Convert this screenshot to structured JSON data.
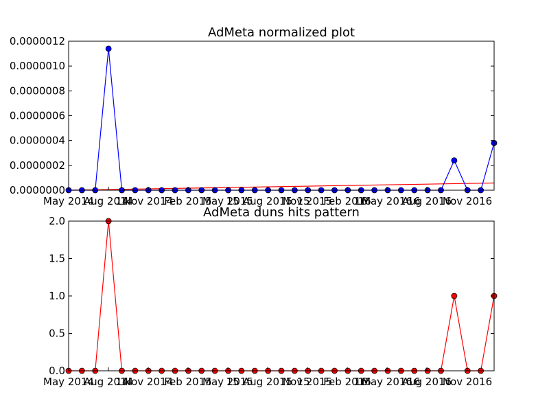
{
  "chart_data": [
    {
      "type": "line",
      "title": "AdMeta normalized plot",
      "xlabel": "",
      "ylabel": "",
      "ylim": [
        0,
        1.2e-06
      ],
      "y_tick_labels": [
        "0.0000000",
        "0.0000002",
        "0.0000004",
        "0.0000006",
        "0.0000008",
        "0.0000010",
        "0.0000012"
      ],
      "x_tick_labels": [
        "May 2014",
        "Aug 2014",
        "Nov 2014",
        "Feb 2015",
        "May 2015",
        "Aug 2015",
        "Nov 2015",
        "Feb 2016",
        "May 2016",
        "Aug 2016",
        "Nov 2016"
      ],
      "x_tick_labels_overlap": [
        "14",
        "15",
        "15",
        "16",
        "16"
      ],
      "x": [
        "2014-05",
        "2014-06",
        "2014-07",
        "2014-08",
        "2014-09",
        "2014-10",
        "2014-11",
        "2014-12",
        "2015-01",
        "2015-02",
        "2015-03",
        "2015-04",
        "2015-05",
        "2015-06",
        "2015-07",
        "2015-08",
        "2015-09",
        "2015-10",
        "2015-11",
        "2015-12",
        "2016-01",
        "2016-02",
        "2016-03",
        "2016-04",
        "2016-05",
        "2016-06",
        "2016-07",
        "2016-08",
        "2016-09",
        "2016-10",
        "2016-11",
        "2016-12",
        "2017-01"
      ],
      "series": [
        {
          "color": "#0000ff",
          "marker_color": "#0000ff",
          "values": [
            0,
            0,
            0,
            1.14e-06,
            0,
            0,
            0,
            0,
            0,
            0,
            0,
            0,
            0,
            0,
            0,
            0,
            0,
            0,
            0,
            0,
            0,
            0,
            0,
            0,
            0,
            0,
            0,
            0,
            0,
            2.4e-07,
            0,
            0,
            3.8e-07
          ]
        }
      ],
      "trend": {
        "color": "#ff0000",
        "start": 0,
        "end": 5.8e-08
      },
      "grid": false
    },
    {
      "type": "line",
      "title": "AdMeta duns hits pattern",
      "xlabel": "",
      "ylabel": "",
      "ylim": [
        0,
        2.0
      ],
      "y_tick_labels": [
        "0.0",
        "0.5",
        "1.0",
        "1.5",
        "2.0"
      ],
      "x_tick_labels": [
        "May 2014",
        "Aug 2014",
        "Nov 2014",
        "Feb 2015",
        "May 2015",
        "Aug 2015",
        "Nov 2015",
        "Feb 2016",
        "May 2016",
        "Aug 2016",
        "Nov 2016"
      ],
      "x_tick_labels_overlap": [
        "14",
        "15",
        "15",
        "16",
        "16"
      ],
      "x": [
        "2014-05",
        "2014-06",
        "2014-07",
        "2014-08",
        "2014-09",
        "2014-10",
        "2014-11",
        "2014-12",
        "2015-01",
        "2015-02",
        "2015-03",
        "2015-04",
        "2015-05",
        "2015-06",
        "2015-07",
        "2015-08",
        "2015-09",
        "2015-10",
        "2015-11",
        "2015-12",
        "2016-01",
        "2016-02",
        "2016-03",
        "2016-04",
        "2016-05",
        "2016-06",
        "2016-07",
        "2016-08",
        "2016-09",
        "2016-10",
        "2016-11",
        "2016-12",
        "2017-01"
      ],
      "series": [
        {
          "color": "#ff0000",
          "marker_color": "#ff0000",
          "values": [
            0,
            0,
            0,
            2,
            0,
            0,
            0,
            0,
            0,
            0,
            0,
            0,
            0,
            0,
            0,
            0,
            0,
            0,
            0,
            0,
            0,
            0,
            0,
            0,
            0,
            0,
            0,
            0,
            0,
            1,
            0,
            0,
            1
          ]
        }
      ],
      "grid": false
    }
  ]
}
